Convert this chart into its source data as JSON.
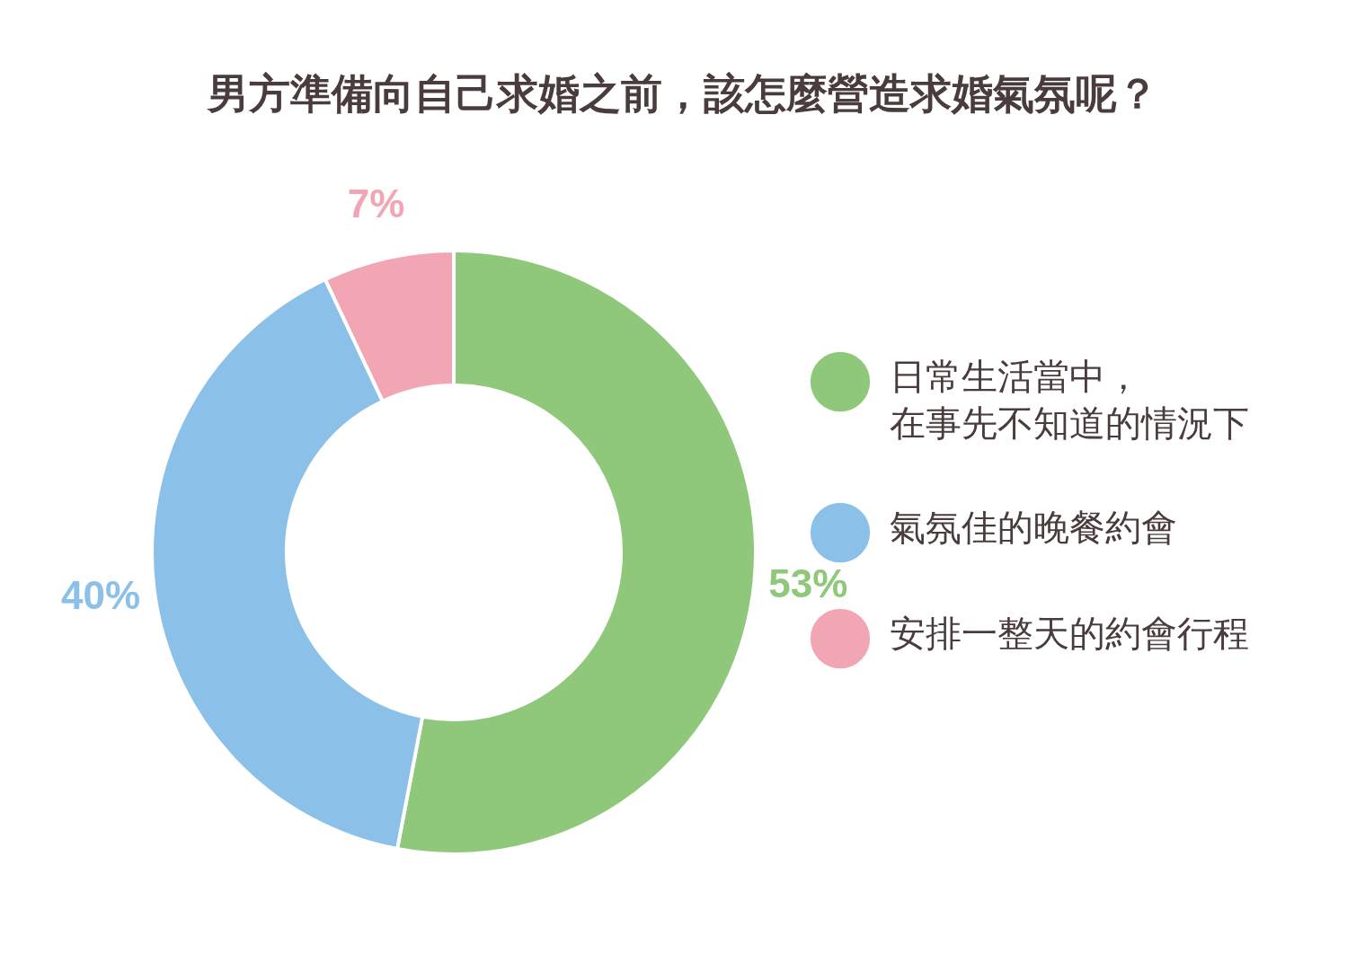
{
  "chart_data": {
    "type": "donut",
    "title": "男方準備向自己求婚之前，該怎麼營造求婚氣氛呢？",
    "categories": [
      "日常生活當中，在事先不知道的情況下",
      "氣氛佳的晚餐約會",
      "安排一整天的約會行程"
    ],
    "values": [
      53,
      40,
      7
    ],
    "colors": [
      "#8fc87a",
      "#8bc0e9",
      "#f2a6b3"
    ],
    "value_labels": [
      "53%",
      "40%",
      "7%"
    ],
    "legend": "right"
  }
}
